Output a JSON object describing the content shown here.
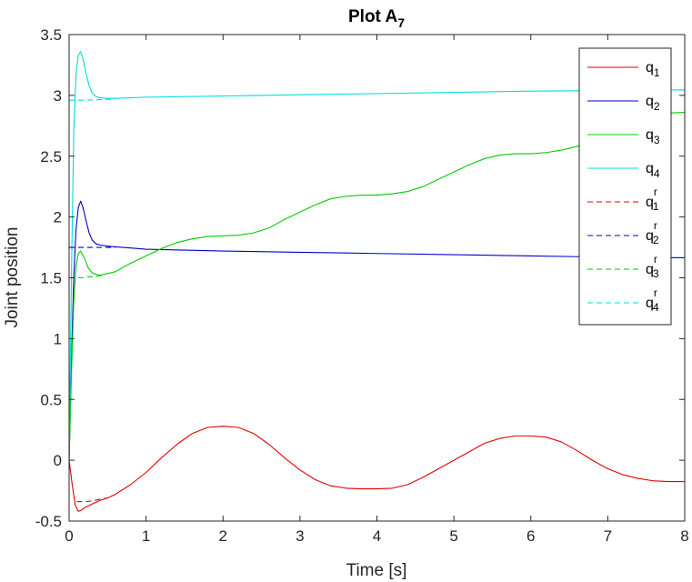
{
  "chart_data": {
    "type": "line",
    "title": "Plot A",
    "title_subscript": "7",
    "xlabel": "Time [s]",
    "ylabel": "Joint position",
    "xlim": [
      0,
      8
    ],
    "ylim": [
      -0.5,
      3.5
    ],
    "xticks": [
      "0",
      "1",
      "2",
      "3",
      "4",
      "5",
      "6",
      "7",
      "8"
    ],
    "yticks": [
      "-0.5",
      "0",
      "0.5",
      "1",
      "1.5",
      "2",
      "2.5",
      "3",
      "3.5"
    ],
    "grid": false,
    "legend_position": "top-right",
    "series": [
      {
        "name": "q",
        "sub": "1",
        "sup": "",
        "color": "#e00000",
        "dash": "solid",
        "x": [
          0,
          0.04,
          0.08,
          0.12,
          0.16,
          0.2,
          0.3,
          0.4,
          0.5,
          0.6,
          0.8,
          1.0,
          1.2,
          1.4,
          1.6,
          1.8,
          2.0,
          2.2,
          2.4,
          2.6,
          2.8,
          3.0,
          3.2,
          3.4,
          3.6,
          3.8,
          4.0,
          4.2,
          4.4,
          4.6,
          4.8,
          5.0,
          5.2,
          5.4,
          5.6,
          5.8,
          6.0,
          6.2,
          6.4,
          6.6,
          6.8,
          7.0,
          7.2,
          7.4,
          7.6,
          7.8,
          8.0
        ],
        "y": [
          0,
          -0.2,
          -0.37,
          -0.42,
          -0.41,
          -0.39,
          -0.36,
          -0.33,
          -0.31,
          -0.28,
          -0.2,
          -0.1,
          0.02,
          0.13,
          0.22,
          0.27,
          0.28,
          0.27,
          0.22,
          0.13,
          0.02,
          -0.08,
          -0.16,
          -0.21,
          -0.23,
          -0.235,
          -0.235,
          -0.23,
          -0.2,
          -0.14,
          -0.07,
          0.0,
          0.07,
          0.14,
          0.18,
          0.2,
          0.2,
          0.19,
          0.15,
          0.08,
          0.0,
          -0.07,
          -0.12,
          -0.15,
          -0.17,
          -0.175,
          -0.175
        ]
      },
      {
        "name": "q",
        "sub": "2",
        "sup": "",
        "color": "#0000d0",
        "dash": "solid",
        "x": [
          0,
          0.03,
          0.06,
          0.09,
          0.12,
          0.15,
          0.18,
          0.22,
          0.26,
          0.3,
          0.35,
          0.4,
          0.5,
          0.6,
          0.8,
          1.0,
          2.0,
          3.0,
          4.0,
          5.0,
          6.0,
          7.0,
          8.0
        ],
        "y": [
          0,
          0.8,
          1.5,
          1.9,
          2.08,
          2.13,
          2.08,
          1.97,
          1.87,
          1.81,
          1.78,
          1.77,
          1.76,
          1.755,
          1.745,
          1.735,
          1.72,
          1.71,
          1.7,
          1.69,
          1.68,
          1.67,
          1.665
        ]
      },
      {
        "name": "q",
        "sub": "3",
        "sup": "",
        "color": "#00cc00",
        "dash": "solid",
        "x": [
          0,
          0.03,
          0.06,
          0.09,
          0.12,
          0.15,
          0.2,
          0.25,
          0.3,
          0.4,
          0.6,
          0.8,
          1.0,
          1.2,
          1.4,
          1.6,
          1.8,
          2.0,
          2.2,
          2.4,
          2.6,
          2.8,
          3.0,
          3.2,
          3.4,
          3.6,
          3.8,
          4.0,
          4.2,
          4.4,
          4.6,
          4.8,
          5.0,
          5.2,
          5.4,
          5.6,
          5.8,
          6.0,
          6.2,
          6.4,
          6.6,
          6.8,
          7.0,
          7.2,
          7.4,
          7.6,
          7.8,
          8.0
        ],
        "y": [
          0,
          0.7,
          1.3,
          1.6,
          1.7,
          1.72,
          1.66,
          1.58,
          1.54,
          1.52,
          1.55,
          1.62,
          1.68,
          1.74,
          1.79,
          1.82,
          1.84,
          1.845,
          1.85,
          1.87,
          1.91,
          1.98,
          2.04,
          2.1,
          2.15,
          2.17,
          2.18,
          2.18,
          2.19,
          2.21,
          2.25,
          2.31,
          2.37,
          2.43,
          2.48,
          2.51,
          2.52,
          2.52,
          2.53,
          2.55,
          2.58,
          2.63,
          2.7,
          2.76,
          2.81,
          2.84,
          2.855,
          2.86
        ]
      },
      {
        "name": "q",
        "sub": "4",
        "sup": "",
        "color": "#00dddd",
        "dash": "solid",
        "x": [
          0,
          0.03,
          0.06,
          0.09,
          0.12,
          0.15,
          0.18,
          0.22,
          0.26,
          0.3,
          0.35,
          0.4,
          0.5,
          0.6,
          0.8,
          1.0,
          2.0,
          3.0,
          4.0,
          5.0,
          6.0,
          7.0,
          8.0
        ],
        "y": [
          0,
          1.5,
          2.7,
          3.18,
          3.33,
          3.36,
          3.3,
          3.18,
          3.08,
          3.02,
          2.99,
          2.98,
          2.975,
          2.975,
          2.98,
          2.985,
          2.995,
          3.005,
          3.015,
          3.025,
          3.035,
          3.04,
          3.045
        ]
      },
      {
        "name": "q",
        "sub": "1",
        "sup": "r",
        "color": "#e00000",
        "dash": "dashed",
        "x": [
          0.1,
          0.2,
          0.3,
          0.4,
          0.5
        ],
        "y": [
          -0.34,
          -0.34,
          -0.335,
          -0.32,
          -0.31
        ]
      },
      {
        "name": "q",
        "sub": "2",
        "sup": "r",
        "color": "#0000d0",
        "dash": "dashed",
        "x": [
          0.0,
          0.2,
          0.4,
          0.6
        ],
        "y": [
          1.75,
          1.75,
          1.75,
          1.75
        ]
      },
      {
        "name": "q",
        "sub": "3",
        "sup": "r",
        "color": "#00cc00",
        "dash": "dashed",
        "x": [
          0.0,
          0.15,
          0.3,
          0.45
        ],
        "y": [
          1.5,
          1.5,
          1.51,
          1.52
        ]
      },
      {
        "name": "q",
        "sub": "4",
        "sup": "r",
        "color": "#00dddd",
        "dash": "dashed",
        "x": [
          0.0,
          0.2,
          0.4,
          0.6
        ],
        "y": [
          2.96,
          2.96,
          2.965,
          2.97
        ]
      }
    ]
  }
}
